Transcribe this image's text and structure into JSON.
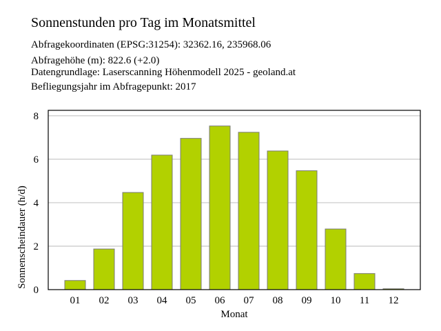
{
  "chart_data": {
    "type": "bar",
    "title": "Sonnenstunden pro Tag im Monatsmittel",
    "subtitle_lines": [
      "Abfragekoordinaten (EPSG:31254): 32362.16, 235968.06",
      "Abfragehöhe (m): 822.6 (+2.0)",
      "Datengrundlage: Laserscanning Höhenmodell 2025 - geoland.at",
      "Befliegungsjahr im Abfragepunkt: 2017"
    ],
    "xlabel": "Monat",
    "ylabel": "Sonnenscheindauer (h/d)",
    "categories": [
      "01",
      "02",
      "03",
      "04",
      "05",
      "06",
      "07",
      "08",
      "09",
      "10",
      "11",
      "12"
    ],
    "values": [
      0.42,
      1.87,
      4.47,
      6.19,
      6.96,
      7.53,
      7.24,
      6.38,
      5.47,
      2.79,
      0.74,
      0.04
    ],
    "ylim": [
      0,
      8.25
    ],
    "yticks": [
      "0",
      "2",
      "4",
      "6",
      "8"
    ],
    "grid": true,
    "colors": {
      "bar_fill": "#b2d100",
      "bar_stroke": "#7a7a7a",
      "grid": "#c8c8c8",
      "frame": "#000000"
    }
  }
}
